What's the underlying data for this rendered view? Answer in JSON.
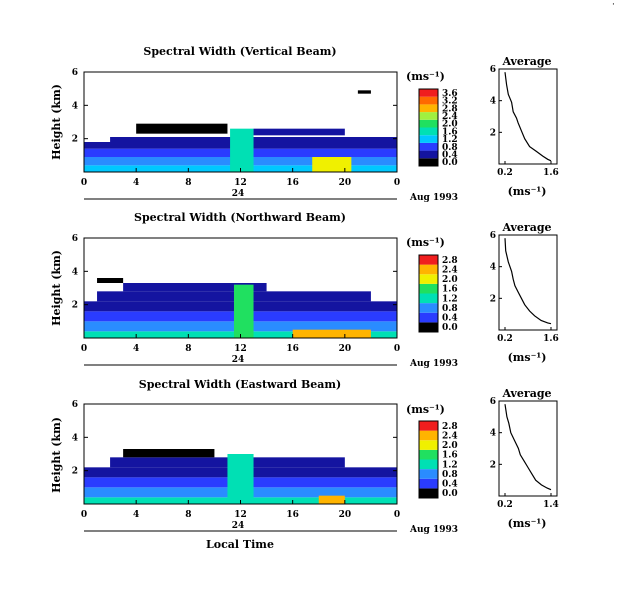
{
  "corner_mark": "·",
  "date_label": "Aug 1993",
  "local_time_label": "Local Time",
  "day_label": "24",
  "height_label": "Height (km)",
  "unit_label": "(ms⁻¹)",
  "colorbar_ticks": [
    "0.0",
    "0.4",
    "0.8",
    "1.2",
    "1.6",
    "2.0",
    "2.4",
    "2.8",
    "3.2"
  ],
  "colorbar_colors": [
    "#000000",
    "#1414a0",
    "#2a3cff",
    "#2a8cff",
    "#00c8ff",
    "#00e0b4",
    "#20e060",
    "#a0f040",
    "#f0f000",
    "#ffb400",
    "#ff6a00",
    "#f01e1e"
  ],
  "chart_data": [
    {
      "type": "heatmap",
      "title": "Spectral Width (Vertical Beam)",
      "xlabel": "",
      "ylabel": "Height (km)",
      "xlim": [
        0,
        24
      ],
      "ylim": [
        0,
        6
      ],
      "x_ticks": [
        "0",
        "4",
        "8",
        "12",
        "16",
        "20",
        "0"
      ],
      "y_ticks": [
        "2",
        "4",
        "6"
      ],
      "colorbar_ticks": [
        "0.0",
        "0.4",
        "0.8",
        "1.2",
        "1.6",
        "2.0",
        "2.4",
        "2.8",
        "3.2",
        "3.6"
      ],
      "colorbar_max": 3.6,
      "cells": [
        {
          "t0": 0,
          "t1": 24,
          "h0": 0.0,
          "h1": 0.4,
          "v": 1.4
        },
        {
          "t0": 0,
          "t1": 24,
          "h0": 0.4,
          "h1": 0.9,
          "v": 1.0
        },
        {
          "t0": 0,
          "t1": 24,
          "h0": 0.9,
          "h1": 1.4,
          "v": 0.7
        },
        {
          "t0": 0,
          "t1": 24,
          "h0": 1.4,
          "h1": 1.8,
          "v": 0.5
        },
        {
          "t0": 2,
          "t1": 24,
          "h0": 1.8,
          "h1": 2.1,
          "v": 0.3
        },
        {
          "t0": 11.2,
          "t1": 13.0,
          "h0": 0.0,
          "h1": 2.6,
          "v": 1.6
        },
        {
          "t0": 17.5,
          "t1": 20.5,
          "h0": 0.0,
          "h1": 0.9,
          "v": 2.4
        },
        {
          "t0": 4,
          "t1": 11,
          "h0": 2.3,
          "h1": 2.9,
          "v": 0.2
        },
        {
          "t0": 13,
          "t1": 20,
          "h0": 2.2,
          "h1": 2.6,
          "v": 0.3
        },
        {
          "t0": 21,
          "t1": 22,
          "h0": 4.7,
          "h1": 4.9,
          "v": 0.2
        }
      ],
      "average": {
        "title": "Average",
        "xlabel": "(ms⁻¹)",
        "xlim": [
          0.2,
          1.6
        ],
        "x_ticks": [
          "0.2",
          "1.6"
        ],
        "y_ticks": [
          "2",
          "4",
          "6"
        ],
        "points": [
          [
            0.2,
            5.8
          ],
          [
            0.25,
            5.0
          ],
          [
            0.3,
            4.4
          ],
          [
            0.4,
            3.9
          ],
          [
            0.45,
            3.3
          ],
          [
            0.55,
            2.9
          ],
          [
            0.6,
            2.6
          ],
          [
            0.7,
            2.1
          ],
          [
            0.8,
            1.6
          ],
          [
            0.95,
            1.1
          ],
          [
            1.15,
            0.8
          ],
          [
            1.35,
            0.5
          ],
          [
            1.5,
            0.3
          ],
          [
            1.6,
            0.2
          ]
        ]
      }
    },
    {
      "type": "heatmap",
      "title": "Spectral Width (Northward Beam)",
      "xlabel": "",
      "ylabel": "Height (km)",
      "xlim": [
        0,
        24
      ],
      "ylim": [
        0,
        6
      ],
      "x_ticks": [
        "0",
        "4",
        "8",
        "12",
        "16",
        "20",
        "0"
      ],
      "y_ticks": [
        "2",
        "4",
        "6"
      ],
      "colorbar_ticks": [
        "0.0",
        "0.4",
        "0.8",
        "1.2",
        "1.6",
        "2.0",
        "2.4",
        "2.8"
      ],
      "colorbar_max": 2.8,
      "cells": [
        {
          "t0": 0,
          "t1": 24,
          "h0": 0.0,
          "h1": 0.4,
          "v": 1.3
        },
        {
          "t0": 0,
          "t1": 24,
          "h0": 0.4,
          "h1": 1.0,
          "v": 0.9
        },
        {
          "t0": 0,
          "t1": 24,
          "h0": 1.0,
          "h1": 1.6,
          "v": 0.6
        },
        {
          "t0": 0,
          "t1": 24,
          "h0": 1.6,
          "h1": 2.2,
          "v": 0.4
        },
        {
          "t0": 1,
          "t1": 22,
          "h0": 2.2,
          "h1": 2.8,
          "v": 0.3
        },
        {
          "t0": 3,
          "t1": 14,
          "h0": 2.8,
          "h1": 3.3,
          "v": 0.25
        },
        {
          "t0": 11.5,
          "t1": 13.0,
          "h0": 0.0,
          "h1": 3.2,
          "v": 1.4
        },
        {
          "t0": 16,
          "t1": 22,
          "h0": 0.0,
          "h1": 0.5,
          "v": 2.2
        },
        {
          "t0": 1,
          "t1": 3,
          "h0": 3.3,
          "h1": 3.6,
          "v": 0.2
        }
      ],
      "average": {
        "title": "Average",
        "xlabel": "(ms⁻¹)",
        "xlim": [
          0.2,
          1.6
        ],
        "x_ticks": [
          "0.2",
          "1.6"
        ],
        "y_ticks": [
          "2",
          "4",
          "6"
        ],
        "points": [
          [
            0.2,
            5.8
          ],
          [
            0.22,
            5.0
          ],
          [
            0.3,
            4.3
          ],
          [
            0.4,
            3.7
          ],
          [
            0.45,
            3.2
          ],
          [
            0.5,
            2.8
          ],
          [
            0.6,
            2.4
          ],
          [
            0.7,
            2.0
          ],
          [
            0.8,
            1.6
          ],
          [
            0.95,
            1.2
          ],
          [
            1.1,
            0.9
          ],
          [
            1.3,
            0.6
          ],
          [
            1.5,
            0.45
          ],
          [
            1.6,
            0.4
          ]
        ]
      }
    },
    {
      "type": "heatmap",
      "title": "Spectral Width (Eastward Beam)",
      "xlabel": "Local Time",
      "ylabel": "Height (km)",
      "xlim": [
        0,
        24
      ],
      "ylim": [
        0,
        6
      ],
      "x_ticks": [
        "0",
        "4",
        "8",
        "12",
        "16",
        "20",
        "0"
      ],
      "y_ticks": [
        "2",
        "4",
        "6"
      ],
      "colorbar_ticks": [
        "0.0",
        "0.4",
        "0.8",
        "1.2",
        "1.6",
        "2.0",
        "2.4",
        "2.8"
      ],
      "colorbar_max": 2.8,
      "cells": [
        {
          "t0": 0,
          "t1": 24,
          "h0": 0.0,
          "h1": 0.4,
          "v": 1.2
        },
        {
          "t0": 0,
          "t1": 24,
          "h0": 0.4,
          "h1": 1.0,
          "v": 0.8
        },
        {
          "t0": 0,
          "t1": 24,
          "h0": 1.0,
          "h1": 1.6,
          "v": 0.55
        },
        {
          "t0": 0,
          "t1": 24,
          "h0": 1.6,
          "h1": 2.2,
          "v": 0.35
        },
        {
          "t0": 2,
          "t1": 20,
          "h0": 2.2,
          "h1": 2.8,
          "v": 0.25
        },
        {
          "t0": 11,
          "t1": 13,
          "h0": 0.0,
          "h1": 3.0,
          "v": 1.3
        },
        {
          "t0": 18,
          "t1": 20,
          "h0": 0.0,
          "h1": 0.5,
          "v": 2.2
        },
        {
          "t0": 3,
          "t1": 10,
          "h0": 2.8,
          "h1": 3.3,
          "v": 0.2
        }
      ],
      "average": {
        "title": "Average",
        "xlabel": "(ms⁻¹)",
        "xlim": [
          0.2,
          1.4
        ],
        "x_ticks": [
          "0.2",
          "1.4"
        ],
        "y_ticks": [
          "2",
          "4",
          "6"
        ],
        "points": [
          [
            0.2,
            5.8
          ],
          [
            0.25,
            5.0
          ],
          [
            0.3,
            4.6
          ],
          [
            0.35,
            4.0
          ],
          [
            0.45,
            3.5
          ],
          [
            0.55,
            3.0
          ],
          [
            0.6,
            2.6
          ],
          [
            0.7,
            2.2
          ],
          [
            0.8,
            1.8
          ],
          [
            0.9,
            1.4
          ],
          [
            1.0,
            1.0
          ],
          [
            1.15,
            0.7
          ],
          [
            1.3,
            0.5
          ],
          [
            1.4,
            0.4
          ]
        ]
      }
    }
  ]
}
